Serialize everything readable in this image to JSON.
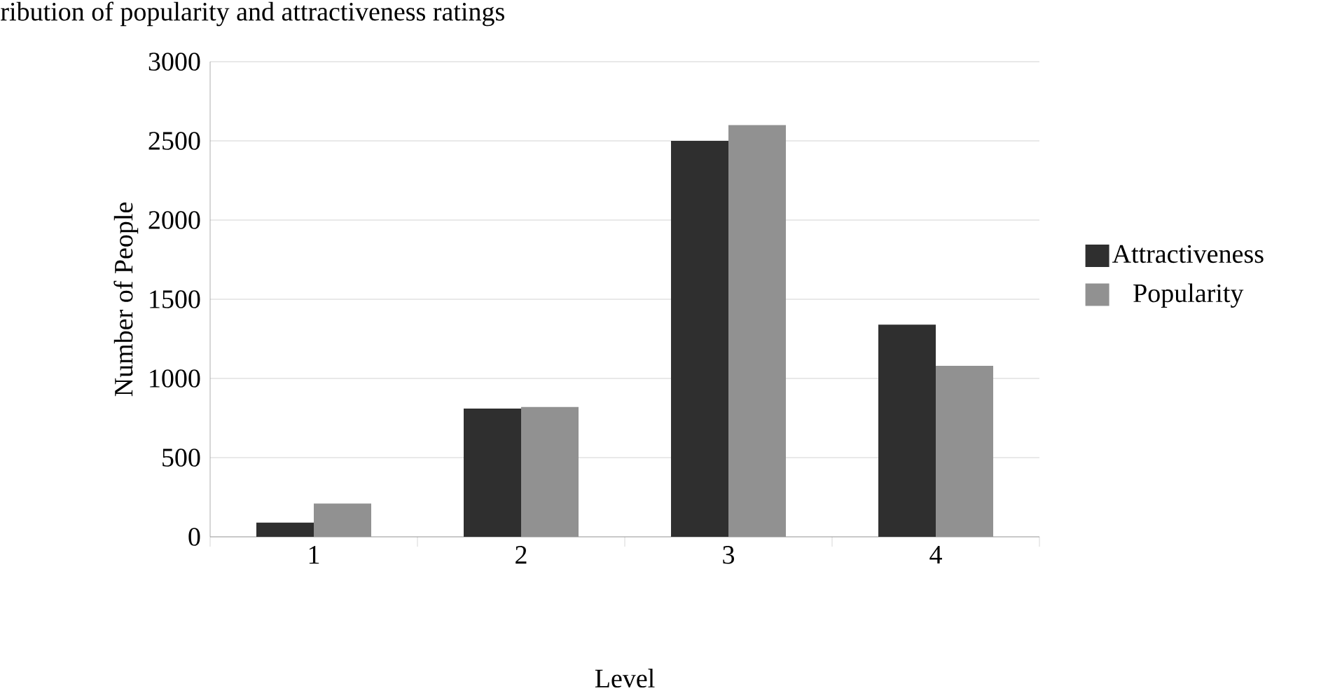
{
  "chart_data": {
    "type": "bar",
    "title": "ribution of popularity and attractiveness ratings",
    "xlabel": "Level",
    "ylabel": "Number of People",
    "categories": [
      "1",
      "2",
      "3",
      "4"
    ],
    "series": [
      {
        "name": "Attractiveness",
        "color": "#2f2f2f",
        "values": [
          90,
          810,
          2500,
          1340
        ]
      },
      {
        "name": "Popularity",
        "color": "#919191",
        "values": [
          210,
          820,
          2600,
          1080
        ]
      }
    ],
    "ylim": [
      0,
      3000
    ],
    "yticks": [
      0,
      500,
      1000,
      1500,
      2000,
      2500,
      3000
    ],
    "grid": "y",
    "legend": "right"
  }
}
